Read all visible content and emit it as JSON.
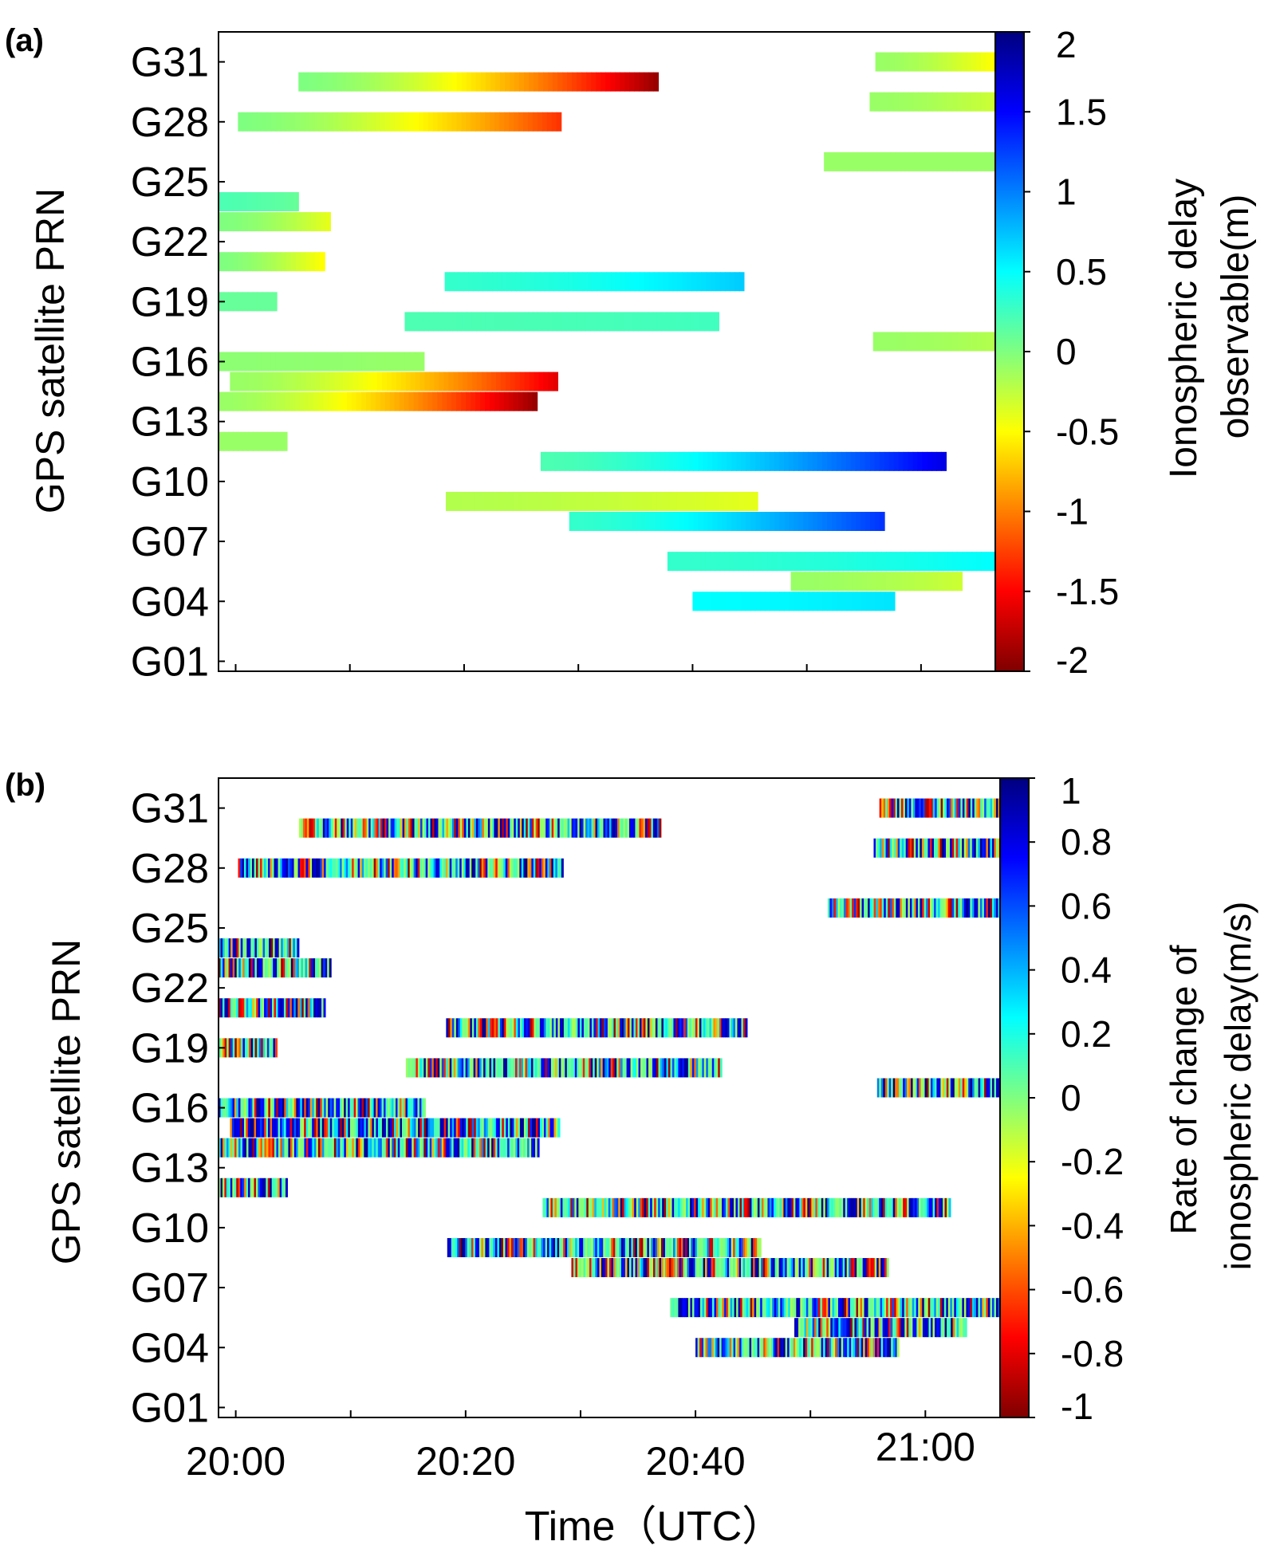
{
  "figure": {
    "xlabel": "Time（UTC）",
    "xticks": [
      "20:00",
      "20:20",
      "20:40",
      "21:00"
    ],
    "xtick_minutes": [
      0,
      20,
      40,
      60
    ],
    "x_range_minutes": [
      -1.5,
      66.5
    ]
  },
  "colors": {
    "frame": "#000000",
    "colormap": [
      "#7f0000",
      "#ff0000",
      "#ff7f00",
      "#ffff00",
      "#7fff7f",
      "#00ffff",
      "#007fff",
      "#0000ff",
      "#00007f"
    ]
  },
  "chart_data": [
    {
      "type": "heatmap",
      "panel_label": "(a)",
      "ylabel": "GPS satellite PRN",
      "yticks": [
        "G31",
        "G28",
        "G25",
        "G22",
        "G19",
        "G16",
        "G13",
        "G10",
        "G07",
        "G04",
        "G01"
      ],
      "y_range": [
        0.5,
        32.5
      ],
      "colorbar_label_lines": [
        "Ionospheric delay",
        "observable(m)"
      ],
      "colorbar_ticks": [
        "2",
        "1.5",
        "1",
        "0.5",
        "0",
        "-0.5",
        "-1",
        "-1.5",
        "-2"
      ],
      "clim": [
        -2,
        2
      ],
      "tracks": [
        {
          "prn": 31,
          "start": 56,
          "end": 66.5,
          "v0": -0.1,
          "v1": -0.5
        },
        {
          "prn": 30,
          "start": 5.5,
          "end": 37,
          "v0": 0.0,
          "v1": -1.9
        },
        {
          "prn": 29,
          "start": 55.5,
          "end": 66.5,
          "v0": -0.1,
          "v1": -0.3
        },
        {
          "prn": 28,
          "start": 0.2,
          "end": 28.5,
          "v0": 0.0,
          "v1": -1.3
        },
        {
          "prn": 26,
          "start": 51.5,
          "end": 66.5,
          "v0": -0.1,
          "v1": -0.1
        },
        {
          "prn": 24,
          "start": -1.5,
          "end": 5.5,
          "v0": 0.2,
          "v1": 0.1
        },
        {
          "prn": 23,
          "start": -1.5,
          "end": 8.3,
          "v0": 0.0,
          "v1": -0.4
        },
        {
          "prn": 21,
          "start": -1.5,
          "end": 7.8,
          "v0": 0.0,
          "v1": -0.5
        },
        {
          "prn": 20,
          "start": 18.3,
          "end": 44.5,
          "v0": 0.3,
          "v1": 0.7
        },
        {
          "prn": 19,
          "start": -1.5,
          "end": 3.6,
          "v0": 0.1,
          "v1": 0.1
        },
        {
          "prn": 18,
          "start": 14.8,
          "end": 42.3,
          "v0": 0.2,
          "v1": 0.25
        },
        {
          "prn": 17,
          "start": 55.8,
          "end": 66.5,
          "v0": -0.1,
          "v1": -0.2
        },
        {
          "prn": 16,
          "start": -1.5,
          "end": 16.5,
          "v0": -0.05,
          "v1": -0.1
        },
        {
          "prn": 15,
          "start": -0.5,
          "end": 28.2,
          "v0": -0.1,
          "v1": -1.6
        },
        {
          "prn": 14,
          "start": -1.5,
          "end": 26.4,
          "v0": -0.1,
          "v1": -1.9
        },
        {
          "prn": 12,
          "start": -1.5,
          "end": 4.5,
          "v0": -0.1,
          "v1": -0.1
        },
        {
          "prn": 11,
          "start": 26.7,
          "end": 62.2,
          "v0": 0.2,
          "v1": 1.6
        },
        {
          "prn": 9,
          "start": 18.4,
          "end": 45.7,
          "v0": -0.2,
          "v1": -0.4
        },
        {
          "prn": 8,
          "start": 29.2,
          "end": 56.8,
          "v0": 0.3,
          "v1": 1.3
        },
        {
          "prn": 6,
          "start": 37.8,
          "end": 66.5,
          "v0": 0.3,
          "v1": 0.5
        },
        {
          "prn": 5,
          "start": 48.6,
          "end": 63.6,
          "v0": -0.1,
          "v1": -0.3
        },
        {
          "prn": 4,
          "start": 40.0,
          "end": 57.7,
          "v0": 0.5,
          "v1": 0.6
        }
      ]
    },
    {
      "type": "heatmap",
      "panel_label": "(b)",
      "ylabel": "GPS satellite PRN",
      "yticks": [
        "G31",
        "G28",
        "G25",
        "G22",
        "G19",
        "G16",
        "G13",
        "G10",
        "G07",
        "G04",
        "G01"
      ],
      "y_range": [
        0.5,
        32.5
      ],
      "colorbar_label_lines": [
        "Rate of change of",
        "ionospheric delay(m/s)"
      ],
      "colorbar_ticks": [
        "1",
        "0.8",
        "0.6",
        "0.4",
        "0.2",
        "0",
        "-0.2",
        "-0.4",
        "-0.6",
        "-0.8",
        "-1"
      ],
      "clim": [
        -1,
        1
      ],
      "tracks": [
        {
          "prn": 31,
          "start": 56,
          "end": 66.5,
          "v0": 0,
          "v1": 0
        },
        {
          "prn": 30,
          "start": 5.5,
          "end": 37,
          "v0": 0,
          "v1": 0
        },
        {
          "prn": 29,
          "start": 55.5,
          "end": 66.5,
          "v0": 0,
          "v1": 0
        },
        {
          "prn": 28,
          "start": 0.2,
          "end": 28.5,
          "v0": 0,
          "v1": 0
        },
        {
          "prn": 26,
          "start": 51.5,
          "end": 66.5,
          "v0": 0,
          "v1": 0
        },
        {
          "prn": 24,
          "start": -1.5,
          "end": 5.5,
          "v0": 0,
          "v1": 0
        },
        {
          "prn": 23,
          "start": -1.5,
          "end": 8.3,
          "v0": 0,
          "v1": 0
        },
        {
          "prn": 21,
          "start": -1.5,
          "end": 7.8,
          "v0": 0,
          "v1": 0
        },
        {
          "prn": 20,
          "start": 18.3,
          "end": 44.5,
          "v0": 0,
          "v1": 0
        },
        {
          "prn": 19,
          "start": -1.5,
          "end": 3.6,
          "v0": 0,
          "v1": 0
        },
        {
          "prn": 18,
          "start": 14.8,
          "end": 42.3,
          "v0": 0,
          "v1": 0
        },
        {
          "prn": 17,
          "start": 55.8,
          "end": 66.5,
          "v0": 0,
          "v1": 0
        },
        {
          "prn": 16,
          "start": -1.5,
          "end": 16.5,
          "v0": 0,
          "v1": 0
        },
        {
          "prn": 15,
          "start": -0.5,
          "end": 28.2,
          "v0": 0,
          "v1": 0
        },
        {
          "prn": 14,
          "start": -1.5,
          "end": 26.4,
          "v0": 0,
          "v1": 0
        },
        {
          "prn": 12,
          "start": -1.5,
          "end": 4.5,
          "v0": 0,
          "v1": 0
        },
        {
          "prn": 11,
          "start": 26.7,
          "end": 62.2,
          "v0": 0,
          "v1": 0
        },
        {
          "prn": 9,
          "start": 18.4,
          "end": 45.7,
          "v0": 0,
          "v1": 0
        },
        {
          "prn": 8,
          "start": 29.2,
          "end": 56.8,
          "v0": 0,
          "v1": 0
        },
        {
          "prn": 6,
          "start": 37.8,
          "end": 66.5,
          "v0": 0,
          "v1": 0
        },
        {
          "prn": 5,
          "start": 48.6,
          "end": 63.6,
          "v0": 0,
          "v1": 0
        },
        {
          "prn": 4,
          "start": 40.0,
          "end": 57.7,
          "v0": 0,
          "v1": 0
        }
      ]
    }
  ]
}
